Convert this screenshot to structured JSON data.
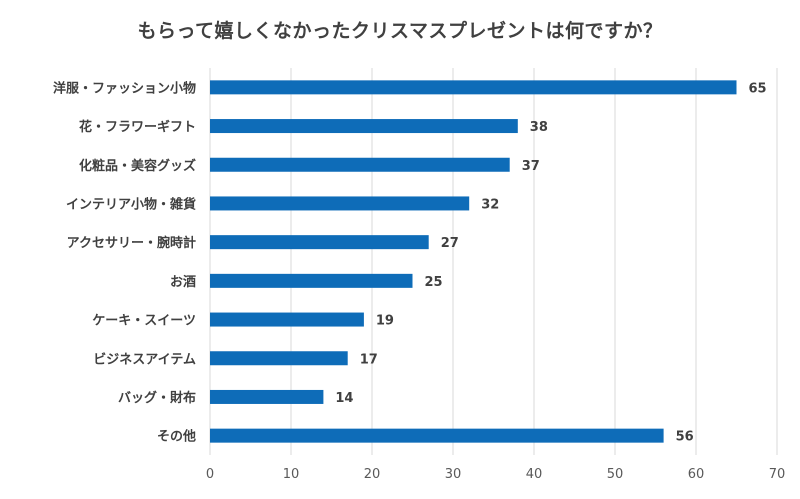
{
  "chart_data": {
    "type": "bar",
    "orientation": "horizontal",
    "title": "もらって嬉しくなかったクリスマスプレゼントは何ですか？",
    "categories": [
      "洋服・ファッション小物",
      "花・フラワーギフト",
      "化粧品・美容グッズ",
      "インテリア小物・雑貨",
      "アクセサリー・腕時計",
      "お酒",
      "ケーキ・スイーツ",
      "ビジネスアイテム",
      "バッグ・財布",
      "その他"
    ],
    "values": [
      65,
      38,
      37,
      32,
      27,
      25,
      19,
      17,
      14,
      56
    ],
    "xlim": [
      0,
      70
    ],
    "xticks": [
      "0",
      "10",
      "20",
      "30",
      "40",
      "50",
      "60",
      "70"
    ],
    "xlabel": "",
    "ylabel": "",
    "grid": "vertical",
    "data_labels": true,
    "bar_color": "#0e6cb8",
    "grid_color": "#d9d9d9"
  }
}
